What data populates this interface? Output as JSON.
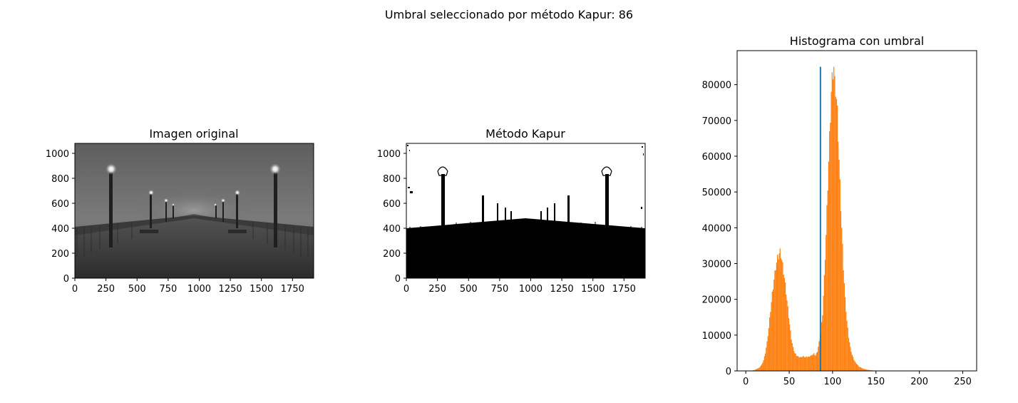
{
  "suptitle": "Umbral seleccionado por método Kapur: 86",
  "panels": {
    "original": {
      "title": "Imagen original"
    },
    "kapur": {
      "title": "Método Kapur"
    },
    "histogram": {
      "title": "Histograma con umbral"
    }
  },
  "image_axes": {
    "xticks": [
      0,
      250,
      500,
      750,
      1000,
      1250,
      1500,
      1750
    ],
    "yticks": [
      0,
      200,
      400,
      600,
      800,
      1000
    ],
    "xlim": [
      0,
      1920
    ],
    "ylim": [
      0,
      1080
    ]
  },
  "colors": {
    "histogram": "#ff7f0e",
    "threshold": "#1f77b4"
  },
  "chart_data": [
    {
      "type": "image",
      "title": "Imagen original",
      "description_kind": "grayscale photo",
      "xticks": [
        0,
        250,
        500,
        750,
        1000,
        1250,
        1500,
        1750
      ],
      "yticks": [
        0,
        200,
        400,
        600,
        800,
        1000
      ],
      "xlim": [
        0,
        1920
      ],
      "ylim": [
        1080,
        0
      ]
    },
    {
      "type": "image",
      "title": "Método Kapur",
      "description_kind": "binary thresholded image",
      "xticks": [
        0,
        250,
        500,
        750,
        1000,
        1250,
        1500,
        1750
      ],
      "yticks": [
        0,
        200,
        400,
        600,
        800,
        1000
      ],
      "xlim": [
        0,
        1920
      ],
      "ylim": [
        1080,
        0
      ]
    },
    {
      "type": "bar",
      "title": "Histograma con umbral",
      "xlim": [
        -10,
        266
      ],
      "ylim": [
        0,
        89500
      ],
      "xticks": [
        0,
        50,
        100,
        150,
        200,
        250
      ],
      "yticks": [
        0,
        10000,
        20000,
        30000,
        40000,
        50000,
        60000,
        70000,
        80000
      ],
      "threshold": 86,
      "threshold_line_top": 85000,
      "x": [
        0,
        5,
        10,
        15,
        18,
        20,
        22,
        24,
        26,
        28,
        30,
        32,
        34,
        36,
        38,
        39,
        40,
        41,
        42,
        44,
        46,
        48,
        50,
        52,
        54,
        56,
        58,
        60,
        62,
        64,
        66,
        68,
        70,
        72,
        74,
        76,
        78,
        80,
        82,
        84,
        86,
        88,
        90,
        92,
        94,
        96,
        98,
        100,
        101,
        102,
        103,
        104,
        105,
        106,
        108,
        110,
        112,
        114,
        116,
        118,
        120,
        122,
        124,
        126,
        128,
        130,
        135,
        140,
        145,
        150,
        160,
        180,
        200,
        220,
        255
      ],
      "values": [
        0,
        0,
        300,
        900,
        1800,
        3000,
        5000,
        8000,
        12000,
        17000,
        21500,
        25500,
        29000,
        31500,
        32800,
        33200,
        32500,
        31000,
        29500,
        26000,
        22000,
        17500,
        13000,
        9000,
        6500,
        5000,
        4300,
        4000,
        3800,
        3900,
        4100,
        3800,
        4000,
        3900,
        4200,
        4500,
        4800,
        4300,
        5500,
        8000,
        10500,
        16000,
        26000,
        38000,
        52000,
        65000,
        78000,
        84000,
        85000,
        80000,
        79000,
        76000,
        72000,
        66000,
        52000,
        40000,
        29000,
        20000,
        14000,
        9500,
        6500,
        4500,
        3200,
        2300,
        1800,
        1200,
        600,
        300,
        150,
        60,
        20,
        5,
        0,
        0,
        0
      ]
    }
  ]
}
